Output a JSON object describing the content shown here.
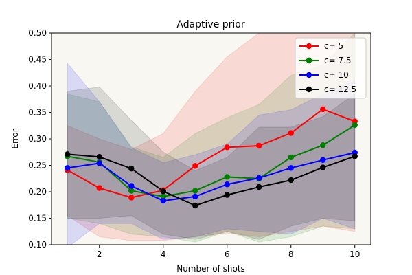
{
  "chart_data": {
    "type": "line",
    "title": "Adaptive prior",
    "xlabel": "Number of shots",
    "ylabel": "Error",
    "xlim": [
      0.5,
      10.5
    ],
    "ylim": [
      0.1,
      0.5
    ],
    "xticks": [
      2,
      4,
      6,
      8,
      10
    ],
    "yticks": [
      0.1,
      0.15,
      0.2,
      0.25,
      0.3,
      0.35,
      0.4,
      0.45,
      0.5
    ],
    "xtick_labels": [
      "2",
      "4",
      "6",
      "8",
      "10"
    ],
    "ytick_labels": [
      "0.10",
      "0.15",
      "0.20",
      "0.25",
      "0.30",
      "0.35",
      "0.40",
      "0.45",
      "0.50"
    ],
    "background": "#f8f7f2",
    "legend_position": "top-right",
    "x": [
      1,
      2,
      3,
      4,
      5,
      6,
      7,
      8,
      9,
      10
    ],
    "series": [
      {
        "name": "c= 5",
        "color": "#ff0000",
        "values": [
          0.241,
          0.207,
          0.189,
          0.203,
          0.249,
          0.284,
          0.287,
          0.311,
          0.356,
          0.333
        ],
        "lower": [
          0.155,
          0.115,
          0.108,
          0.108,
          0.115,
          0.122,
          0.115,
          0.125,
          0.135,
          0.125
        ],
        "upper": [
          0.325,
          0.3,
          0.28,
          0.31,
          0.39,
          0.455,
          0.5,
          0.5,
          0.5,
          0.5
        ]
      },
      {
        "name": "c= 7.5",
        "color": "#008000",
        "values": [
          0.267,
          0.256,
          0.202,
          0.191,
          0.202,
          0.228,
          0.225,
          0.265,
          0.288,
          0.326
        ],
        "lower": [
          0.15,
          0.14,
          0.12,
          0.115,
          0.105,
          0.125,
          0.105,
          0.115,
          0.135,
          0.13
        ],
        "upper": [
          0.385,
          0.37,
          0.285,
          0.265,
          0.31,
          0.34,
          0.365,
          0.42,
          0.44,
          0.5
        ]
      },
      {
        "name": "c= 10",
        "color": "#0000ff",
        "values": [
          0.245,
          0.254,
          0.211,
          0.183,
          0.191,
          0.214,
          0.226,
          0.245,
          0.26,
          0.274
        ],
        "lower": [
          0.095,
          0.14,
          0.14,
          0.11,
          0.115,
          0.13,
          0.125,
          0.12,
          0.15,
          0.13
        ],
        "upper": [
          0.443,
          0.37,
          0.283,
          0.255,
          0.27,
          0.29,
          0.345,
          0.355,
          0.385,
          0.41
        ]
      },
      {
        "name": "c= 12.5",
        "color": "#000000",
        "values": [
          0.271,
          0.266,
          0.244,
          0.201,
          0.174,
          0.194,
          0.209,
          0.222,
          0.246,
          0.267
        ],
        "lower": [
          0.15,
          0.15,
          0.155,
          0.12,
          0.11,
          0.125,
          0.11,
          0.135,
          0.15,
          0.145
        ],
        "upper": [
          0.39,
          0.398,
          0.335,
          0.275,
          0.24,
          0.265,
          0.322,
          0.322,
          0.342,
          0.385
        ]
      }
    ]
  }
}
